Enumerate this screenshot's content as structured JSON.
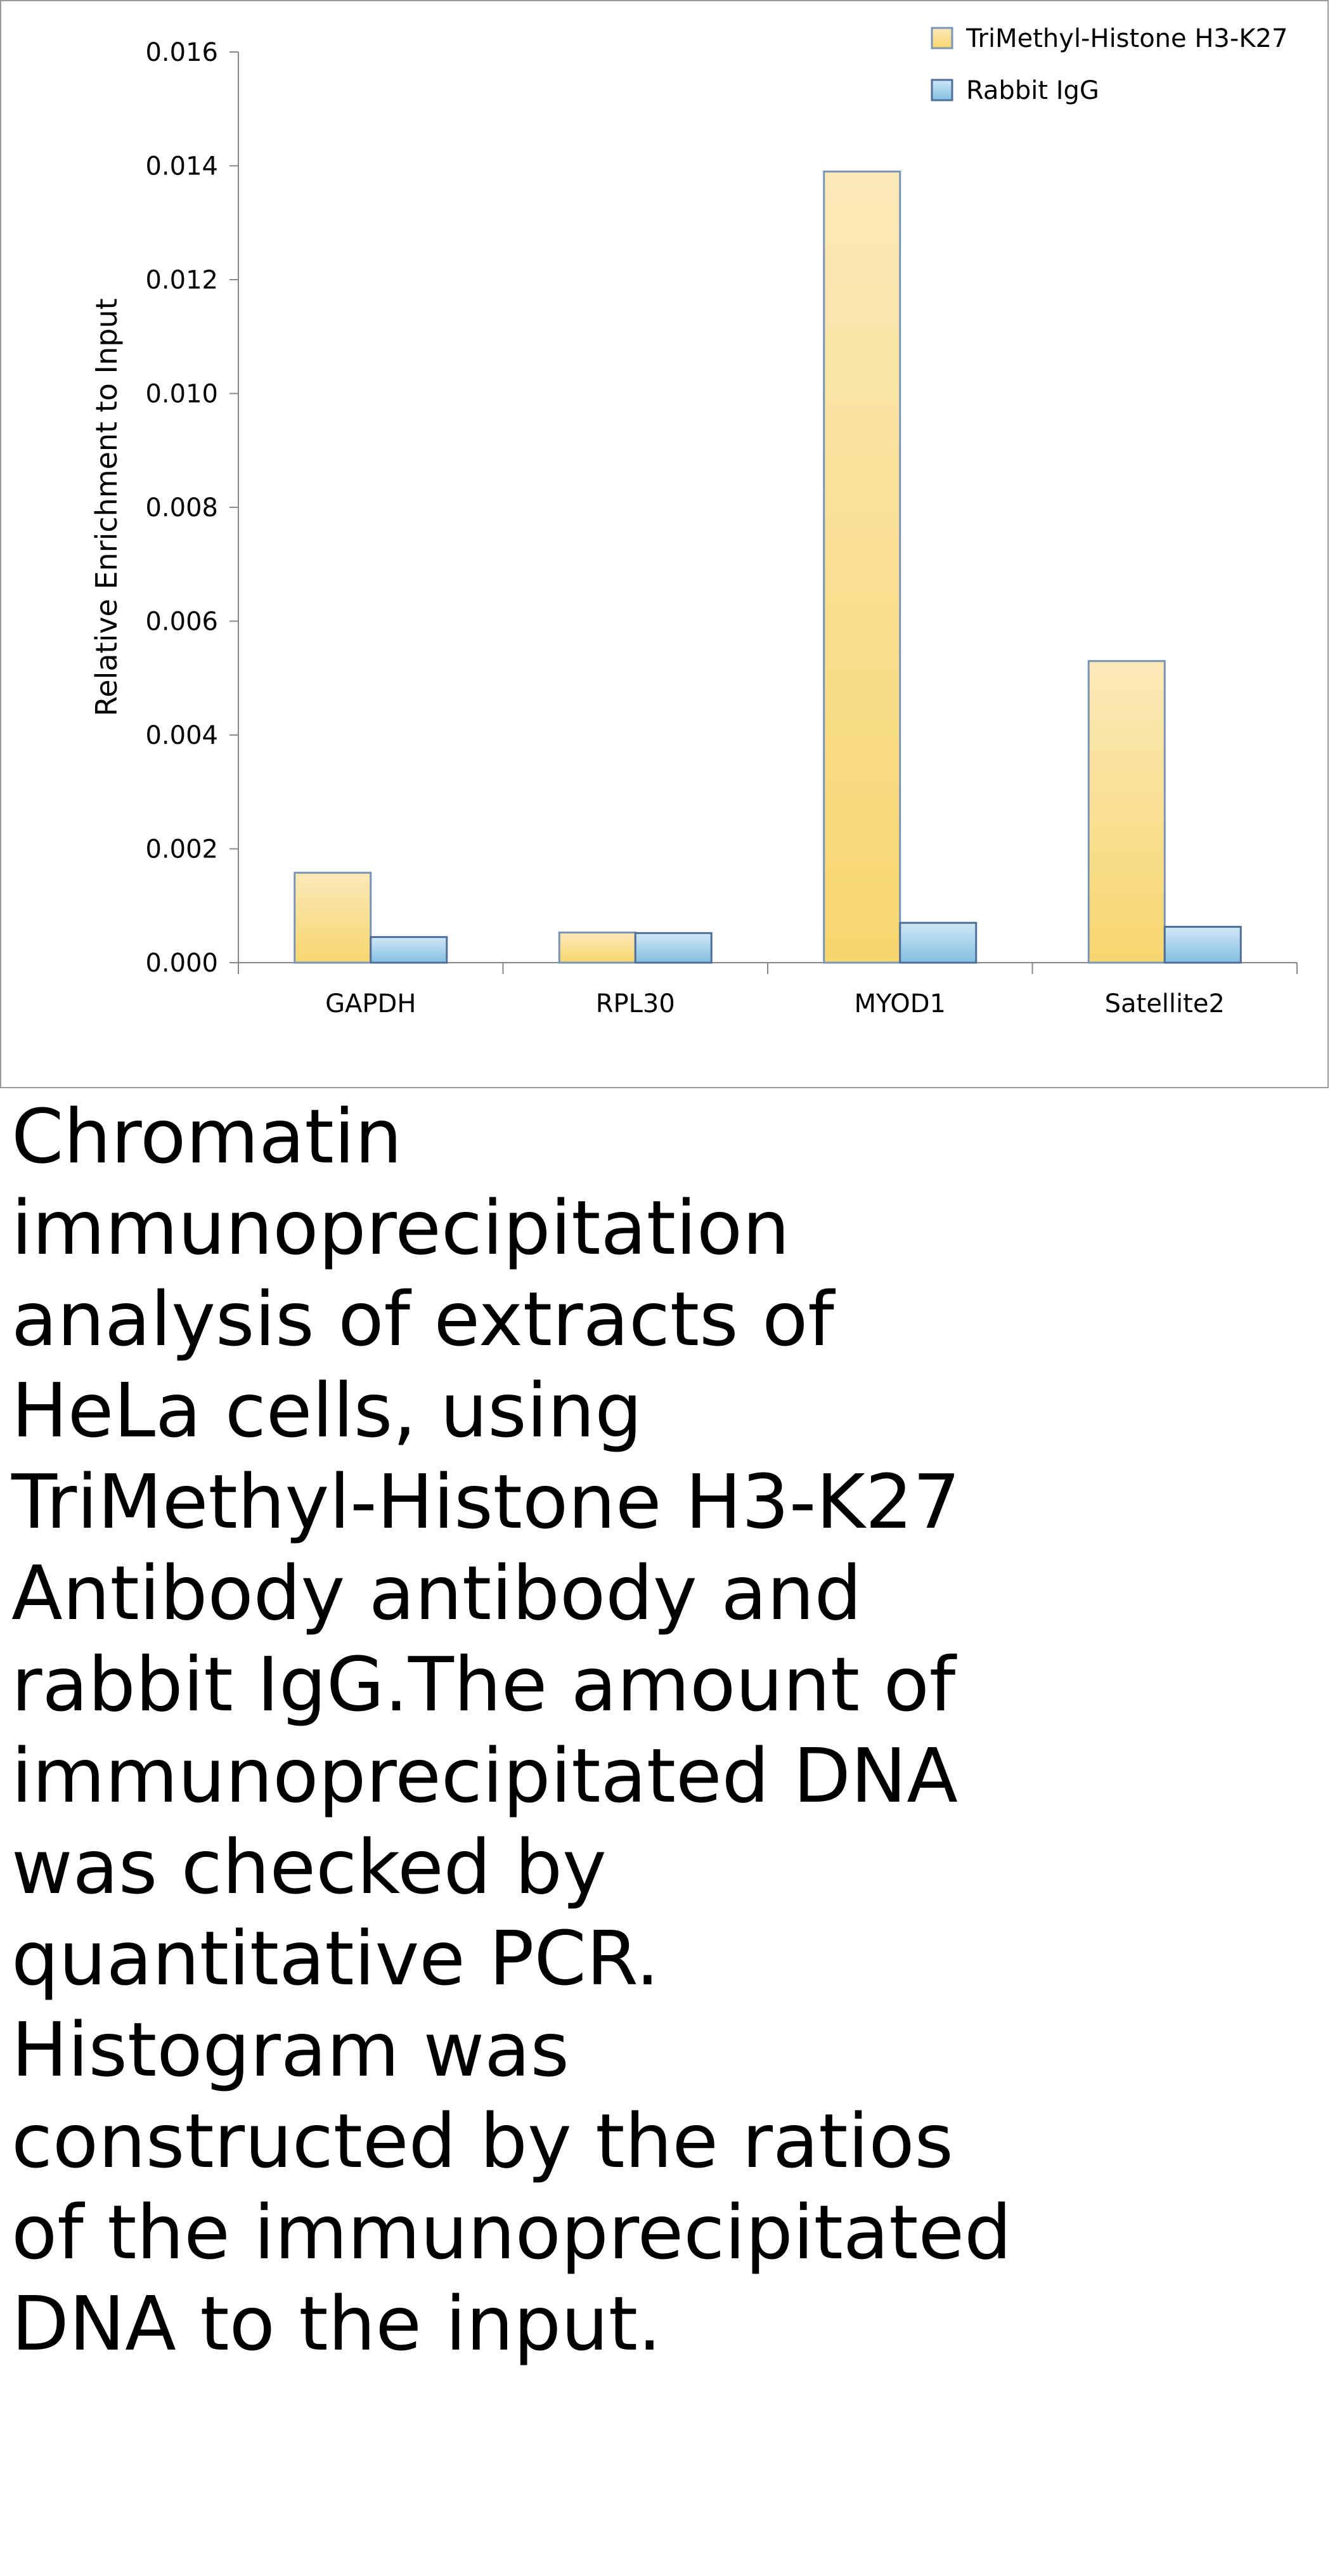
{
  "chart_data": {
    "type": "bar",
    "categories": [
      "GAPDH",
      "RPL30",
      "MYOD1",
      "Satellite2"
    ],
    "series": [
      {
        "name": "TriMethyl-Histone H3-K27",
        "values": [
          0.00158,
          0.00053,
          0.0139,
          0.0053
        ],
        "color": "#f7d877"
      },
      {
        "name": "Rabbit IgG",
        "values": [
          0.00045,
          0.00052,
          0.0007,
          0.00063
        ],
        "color": "#8ec4e0"
      }
    ],
    "xlabel": "",
    "ylabel": "Relative Enrichment to Input",
    "ylim": [
      0,
      0.016
    ],
    "yticks": [
      0,
      0.002,
      0.004,
      0.006,
      0.008,
      0.01,
      0.012,
      0.014,
      0.016
    ],
    "ytick_labels": [
      "0.000",
      "0.002",
      "0.004",
      "0.006",
      "0.008",
      "0.010",
      "0.012",
      "0.014",
      "0.016"
    ],
    "grid": false,
    "legend_position": "top-right"
  },
  "caption": "Chromatin immunoprecipitation analysis of extracts of HeLa cells, using TriMethyl-Histone H3-K27 Antibody antibody and rabbit IgG.The amount of immunoprecipitated DNA was checked by quantitative PCR. Histogram was constructed by the ratios of the immunoprecipitated DNA to the input."
}
